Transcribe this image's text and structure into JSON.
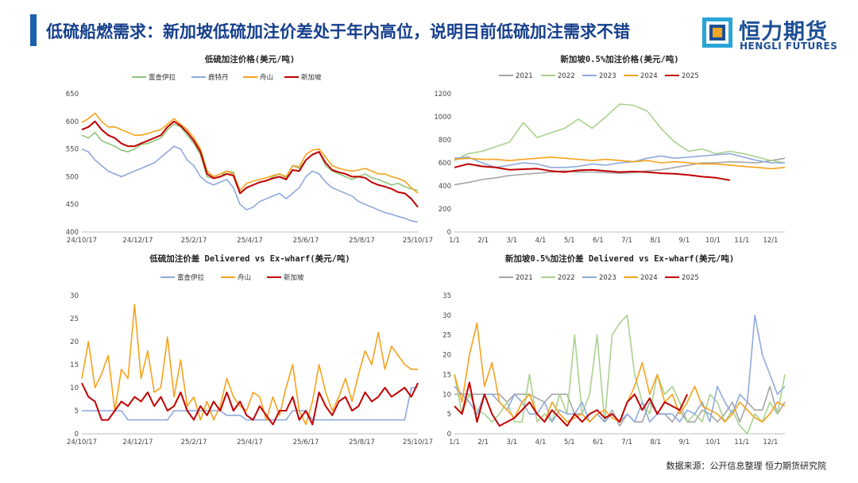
{
  "page": {
    "title": "低硫船燃需求：新加坡低硫加注价差处于年内高位，说明目前低硫加注需求不错",
    "source": "数据来源：公开信息整理  恒力期货研究院"
  },
  "logo": {
    "name_cn": "恒力期货",
    "name_en": "HENGLI FUTURES",
    "colors": [
      "#f5a623",
      "#1d4f95",
      "#2aa5d6"
    ]
  },
  "chart_data": [
    {
      "id": "lsfo-price",
      "type": "line",
      "title": "低硫加注价格(美元/吨)",
      "x_tick_labels": [
        "24/10/17",
        "24/12/17",
        "25/2/17",
        "25/4/17",
        "25/6/17",
        "25/8/17",
        "25/10/17"
      ],
      "ylim": [
        400,
        650
      ],
      "y_ticks": [
        400,
        450,
        500,
        550,
        600,
        650
      ],
      "y_tick_labels": [
        "400",
        "450",
        "500",
        "550",
        "600",
        "650"
      ],
      "series": [
        {
          "name": "富查伊拉",
          "color": "#92c47d",
          "values": [
            575,
            570,
            580,
            565,
            560,
            555,
            548,
            545,
            550,
            558,
            560,
            565,
            570,
            585,
            595,
            590,
            575,
            560,
            540,
            500,
            497,
            500,
            510,
            508,
            470,
            480,
            485,
            490,
            492,
            500,
            505,
            498,
            520,
            515,
            530,
            540,
            545,
            520,
            510,
            505,
            500,
            495,
            500,
            505,
            498,
            495,
            490,
            485,
            488,
            482,
            478,
            475
          ]
        },
        {
          "name": "鹿特丹",
          "color": "#8ea9db",
          "values": [
            550,
            545,
            530,
            520,
            510,
            505,
            500,
            505,
            510,
            515,
            520,
            525,
            535,
            545,
            555,
            550,
            530,
            520,
            500,
            490,
            485,
            490,
            495,
            480,
            450,
            440,
            445,
            455,
            460,
            465,
            470,
            460,
            470,
            480,
            500,
            510,
            505,
            490,
            480,
            475,
            470,
            465,
            455,
            450,
            445,
            440,
            435,
            432,
            428,
            425,
            420,
            418
          ]
        },
        {
          "name": "舟山",
          "color": "#f6a21b",
          "values": [
            598,
            605,
            615,
            600,
            590,
            590,
            585,
            580,
            575,
            575,
            578,
            582,
            585,
            595,
            605,
            595,
            585,
            570,
            550,
            510,
            500,
            505,
            510,
            505,
            475,
            488,
            492,
            495,
            498,
            502,
            505,
            500,
            520,
            518,
            540,
            548,
            550,
            535,
            520,
            515,
            512,
            510,
            512,
            515,
            510,
            505,
            505,
            500,
            497,
            492,
            480,
            470
          ]
        },
        {
          "name": "新加坡",
          "color": "#c00000",
          "values": [
            585,
            590,
            600,
            585,
            575,
            570,
            560,
            555,
            555,
            560,
            565,
            570,
            575,
            590,
            600,
            592,
            580,
            565,
            545,
            505,
            497,
            500,
            505,
            502,
            470,
            480,
            485,
            490,
            493,
            497,
            500,
            495,
            512,
            510,
            530,
            540,
            545,
            525,
            512,
            508,
            505,
            500,
            500,
            498,
            490,
            485,
            482,
            478,
            472,
            470,
            460,
            445
          ]
        }
      ]
    },
    {
      "id": "sg-05-price",
      "type": "line",
      "title": "新加坡0.5%加注价格(美元/吨)",
      "x_tick_labels": [
        "1/1",
        "2/1",
        "3/1",
        "4/1",
        "5/1",
        "6/1",
        "7/1",
        "8/1",
        "9/1",
        "10/1",
        "11/1",
        "12/1"
      ],
      "ylim": [
        0,
        1200
      ],
      "y_ticks": [
        0,
        200,
        400,
        600,
        800,
        1000,
        1200
      ],
      "y_tick_labels": [
        "0",
        "200",
        "400",
        "600",
        "800",
        "1000",
        "1200"
      ],
      "series": [
        {
          "name": "2021",
          "color": "#a5a5a5",
          "values": [
            410,
            430,
            455,
            470,
            490,
            500,
            510,
            520,
            530,
            520,
            520,
            515,
            510,
            515,
            530,
            540,
            560,
            580,
            600,
            600,
            610,
            605,
            600,
            620,
            640
          ]
        },
        {
          "name": "2022",
          "color": "#a9d18e",
          "values": [
            620,
            680,
            700,
            740,
            780,
            950,
            820,
            860,
            900,
            980,
            900,
            1000,
            1110,
            1100,
            1050,
            900,
            780,
            700,
            720,
            680,
            700,
            680,
            650,
            620,
            600
          ]
        },
        {
          "name": "2023",
          "color": "#8faadc",
          "values": [
            640,
            650,
            600,
            560,
            580,
            600,
            590,
            560,
            560,
            570,
            590,
            580,
            600,
            610,
            640,
            660,
            640,
            650,
            660,
            670,
            680,
            650,
            620,
            600,
            600
          ]
        },
        {
          "name": "2024",
          "color": "#f6a21b",
          "values": [
            630,
            640,
            630,
            630,
            620,
            630,
            640,
            650,
            640,
            630,
            620,
            630,
            620,
            610,
            620,
            600,
            610,
            600,
            590,
            590,
            580,
            570,
            560,
            550,
            560
          ]
        },
        {
          "name": "2025",
          "color": "#c00000",
          "values": [
            560,
            590,
            570,
            560,
            540,
            545,
            550,
            530,
            520,
            535,
            540,
            530,
            520,
            525,
            520,
            510,
            505,
            495,
            480,
            470,
            450
          ]
        }
      ]
    },
    {
      "id": "lsfo-spread",
      "type": "line",
      "title": "低硫加注价差 Delivered vs Ex-wharf(美元/吨)",
      "x_tick_labels": [
        "24/10/17",
        "24/12/17",
        "25/2/17",
        "25/4/17",
        "25/6/17",
        "25/8/17",
        "25/10/17"
      ],
      "ylim": [
        0,
        30
      ],
      "y_ticks": [
        0,
        5,
        10,
        15,
        20,
        25,
        30
      ],
      "y_tick_labels": [
        "0",
        "5",
        "10",
        "15",
        "20",
        "25",
        "30"
      ],
      "series": [
        {
          "name": "富查伊拉",
          "color": "#8ea9db",
          "values": [
            5,
            5,
            5,
            5,
            5,
            5,
            5,
            3,
            3,
            3,
            3,
            3,
            3,
            3,
            5,
            5,
            5,
            5,
            5,
            5,
            5,
            5,
            4,
            4,
            4,
            3,
            3,
            3,
            3,
            3,
            3,
            3,
            5,
            5,
            5,
            3,
            3,
            3,
            3,
            3,
            3,
            3,
            3,
            3,
            3,
            3,
            3,
            3,
            3,
            3,
            10,
            10
          ]
        },
        {
          "name": "舟山",
          "color": "#f6a21b",
          "values": [
            12,
            20,
            10,
            13,
            17,
            5,
            14,
            12,
            28,
            12,
            18,
            9,
            10,
            21,
            8,
            16,
            6,
            8,
            3,
            7,
            3,
            6,
            12,
            8,
            6,
            5,
            9,
            8,
            3,
            8,
            4,
            10,
            15,
            5,
            2,
            7,
            15,
            9,
            5,
            8,
            12,
            7,
            13,
            18,
            15,
            22,
            14,
            19,
            17,
            15,
            14,
            14
          ]
        },
        {
          "name": "新加坡",
          "color": "#c00000",
          "values": [
            11,
            8,
            7,
            3,
            3,
            5,
            7,
            6,
            8,
            7,
            9,
            6,
            8,
            5,
            6,
            9,
            5,
            3,
            6,
            4,
            7,
            5,
            9,
            5,
            7,
            4,
            3,
            6,
            4,
            2,
            5,
            5,
            8,
            3,
            5,
            2,
            9,
            6,
            4,
            7,
            8,
            5,
            6,
            9,
            7,
            8,
            10,
            8,
            9,
            10,
            8,
            11
          ]
        }
      ]
    },
    {
      "id": "sg-05-spread",
      "type": "line",
      "title": "新加坡0.5%加注价差 Delivered vs Ex-wharf(美元/吨)",
      "x_tick_labels": [
        "1/1",
        "2/1",
        "3/1",
        "4/1",
        "5/1",
        "6/1",
        "7/1",
        "8/1",
        "9/1",
        "10/1",
        "11/1",
        "12/1"
      ],
      "ylim": [
        0,
        35
      ],
      "y_ticks": [
        0,
        5,
        10,
        15,
        20,
        25,
        30,
        35
      ],
      "y_tick_labels": [
        "0",
        "5",
        "10",
        "15",
        "20",
        "25",
        "30",
        "35"
      ],
      "series": [
        {
          "name": "2021",
          "color": "#a5a5a5",
          "values": [
            10,
            10,
            10,
            10,
            10,
            10,
            10,
            8,
            10,
            10,
            10,
            9,
            8,
            10,
            10,
            10,
            5,
            5,
            3,
            5,
            3,
            6,
            2,
            5,
            3,
            3,
            8,
            5,
            5,
            3,
            6,
            3,
            3,
            6,
            5,
            3,
            5,
            8,
            3,
            8,
            6,
            6,
            12,
            5,
            8
          ]
        },
        {
          "name": "2022",
          "color": "#a9d18e",
          "values": [
            15,
            5,
            10,
            6,
            5,
            3,
            5,
            8,
            3,
            3,
            15,
            3,
            5,
            3,
            10,
            5,
            25,
            5,
            10,
            25,
            3,
            25,
            28,
            30,
            15,
            8,
            5,
            15,
            10,
            12,
            8,
            3,
            5,
            3,
            10,
            8,
            3,
            6,
            2,
            0,
            5,
            3,
            8,
            5,
            15
          ]
        },
        {
          "name": "2023",
          "color": "#8faadc",
          "values": [
            12,
            10,
            8,
            5,
            10,
            10,
            8,
            6,
            10,
            8,
            5,
            5,
            8,
            3,
            6,
            5,
            5,
            8,
            3,
            5,
            3,
            5,
            3,
            5,
            3,
            8,
            3,
            5,
            5,
            5,
            3,
            6,
            5,
            8,
            3,
            12,
            8,
            5,
            10,
            8,
            30,
            20,
            15,
            10,
            12
          ]
        },
        {
          "name": "2024",
          "color": "#f6a21b",
          "values": [
            15,
            8,
            20,
            28,
            12,
            18,
            8,
            6,
            4,
            8,
            10,
            5,
            3,
            8,
            5,
            3,
            4,
            5,
            3,
            5,
            6,
            4,
            3,
            8,
            12,
            18,
            10,
            15,
            8,
            10,
            5,
            8,
            12,
            7,
            6,
            5,
            3,
            5,
            8,
            6,
            4,
            3,
            5,
            8,
            7
          ]
        },
        {
          "name": "2025",
          "color": "#c00000",
          "values": [
            7,
            5,
            13,
            3,
            10,
            5,
            2,
            3,
            4,
            6,
            8,
            5,
            3,
            6,
            4,
            2,
            5,
            3,
            5,
            6,
            4,
            5,
            3,
            8,
            10,
            6,
            9,
            5,
            8,
            7,
            6,
            10
          ]
        }
      ]
    }
  ]
}
